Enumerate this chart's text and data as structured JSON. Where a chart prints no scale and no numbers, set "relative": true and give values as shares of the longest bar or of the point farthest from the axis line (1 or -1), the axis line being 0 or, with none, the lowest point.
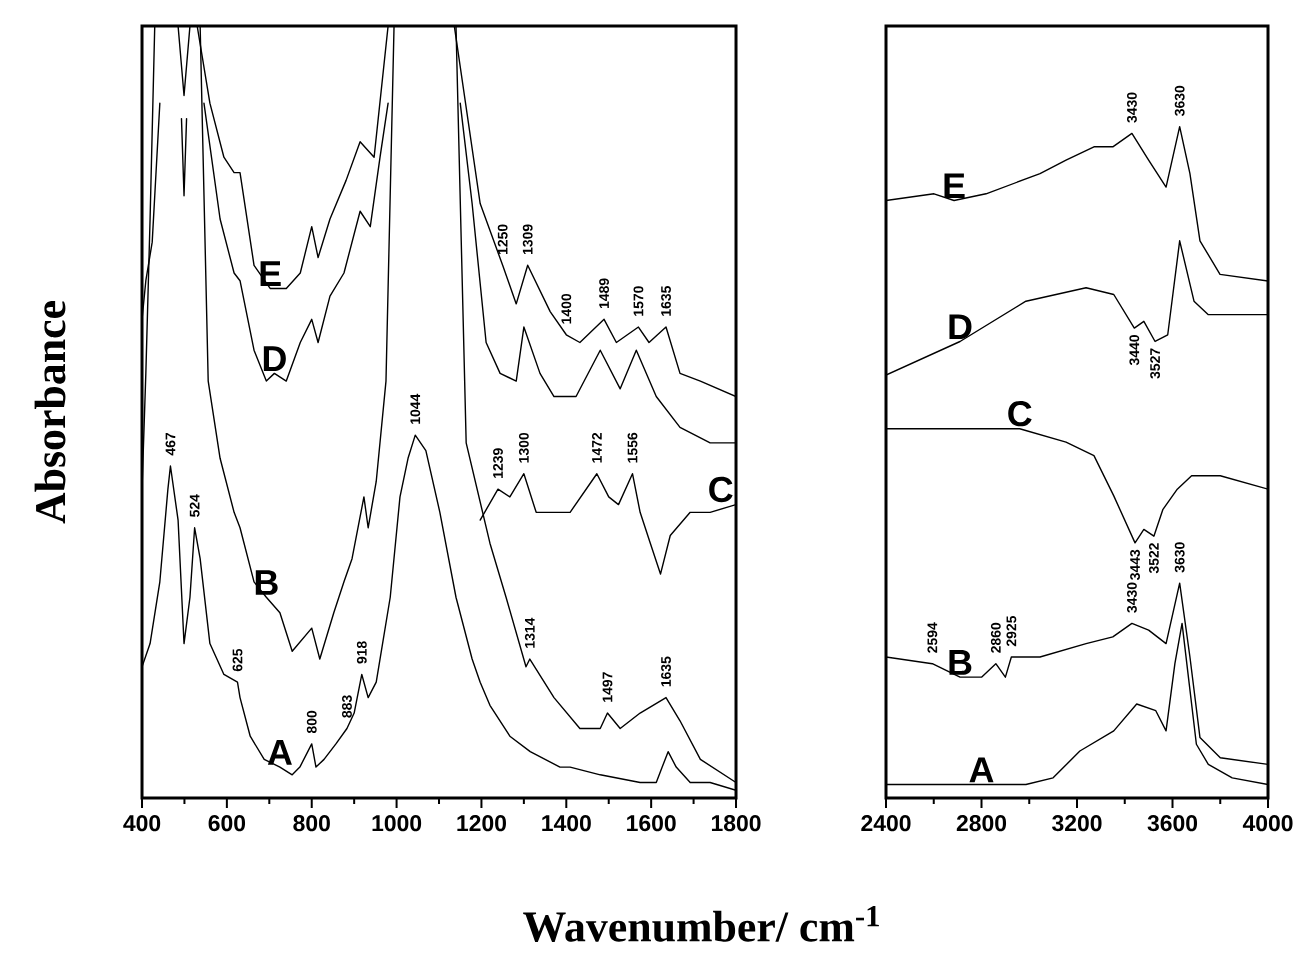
{
  "chart_data": [
    {
      "type": "line",
      "relative": true,
      "xlabel": "Wavenumber/ cm$^{-1}$",
      "ylabel": "Absorbance",
      "xlim": [
        400,
        1800
      ],
      "xticks": [
        400,
        600,
        800,
        1000,
        1200,
        1400,
        1600,
        1800
      ],
      "series": [
        {
          "name": "A",
          "color": "#000000",
          "x": [
            400,
            419,
            442,
            461,
            467,
            485,
            499,
            513,
            524,
            537,
            560,
            593,
            625,
            631,
            655,
            688,
            725,
            754,
            772,
            800,
            810,
            829,
            857,
            883,
            900,
            918,
            933,
            952,
            985,
            1008,
            1027,
            1044,
            1069,
            1102,
            1140,
            1178,
            1197,
            1220,
            1267,
            1315,
            1385,
            1409,
            1480,
            1574,
            1612,
            1626,
            1640,
            1659,
            1692,
            1739,
            1800
          ],
          "values": [
            0.17,
            0.2,
            0.28,
            0.4,
            0.43,
            0.36,
            0.2,
            0.26,
            0.35,
            0.31,
            0.2,
            0.16,
            0.15,
            0.13,
            0.08,
            0.05,
            0.04,
            0.03,
            0.04,
            0.07,
            0.04,
            0.05,
            0.07,
            0.09,
            0.11,
            0.16,
            0.13,
            0.15,
            0.26,
            0.39,
            0.44,
            0.47,
            0.45,
            0.37,
            0.26,
            0.18,
            0.15,
            0.12,
            0.08,
            0.06,
            0.04,
            0.04,
            0.03,
            0.02,
            0.02,
            0.04,
            0.06,
            0.04,
            0.02,
            0.02,
            0.01
          ]
        },
        {
          "name": "B",
          "color": "#000000",
          "x": [
            400,
            409,
            419,
            430,
            460,
            490,
            499,
            508,
            530,
            537,
            556,
            584,
            617,
            631,
            664,
            693,
            725,
            754,
            800,
            819,
            852,
            876,
            895,
            923,
            933,
            952,
            975,
            994,
            1060,
            1140,
            1164,
            1220,
            1258,
            1305,
            1314,
            1371,
            1432,
            1480,
            1497,
            1527,
            1574,
            1635,
            1668,
            1716,
            1800
          ],
          "values": [
            0.4,
            0.55,
            0.75,
            1.0,
            null,
            null,
            null,
            null,
            null,
            1.0,
            0.54,
            0.44,
            0.37,
            0.35,
            0.28,
            0.26,
            0.24,
            0.19,
            0.22,
            0.18,
            0.24,
            0.28,
            0.31,
            0.39,
            0.35,
            0.41,
            0.54,
            1.0,
            null,
            1.0,
            0.46,
            0.33,
            0.26,
            0.17,
            0.18,
            0.13,
            0.09,
            0.09,
            0.11,
            0.09,
            0.11,
            0.13,
            0.1,
            0.05,
            0.02
          ]
        },
        {
          "name": "C",
          "color": "#000000",
          "x": [
            1197,
            1239,
            1267,
            1300,
            1329,
            1352,
            1409,
            1472,
            1500,
            1523,
            1556,
            1574,
            1598,
            1622,
            1645,
            1692,
            1739,
            1800
          ],
          "values": [
            0.36,
            0.4,
            0.39,
            0.42,
            0.37,
            0.37,
            0.37,
            0.42,
            0.39,
            0.38,
            0.42,
            0.37,
            0.33,
            0.29,
            0.34,
            0.37,
            0.37,
            0.38
          ]
        },
        {
          "name": "D",
          "color": "#000000",
          "x": [
            400,
            409,
            424,
            442,
            450,
            493,
            499,
            505,
            530,
            546,
            584,
            617,
            631,
            664,
            693,
            712,
            740,
            773,
            800,
            815,
            843,
            876,
            914,
            938,
            961,
            980,
            1060,
            1150,
            1178,
            1211,
            1244,
            1282,
            1300,
            1338,
            1371,
            1423,
            1480,
            1527,
            1565,
            1612,
            1668,
            1739,
            1800
          ],
          "values": [
            0.62,
            0.67,
            0.72,
            0.9,
            null,
            0.88,
            0.78,
            0.88,
            null,
            0.9,
            0.75,
            0.68,
            0.67,
            0.58,
            0.54,
            0.55,
            0.54,
            0.59,
            0.62,
            0.59,
            0.65,
            0.68,
            0.76,
            0.74,
            0.83,
            0.9,
            null,
            0.9,
            0.77,
            0.59,
            0.55,
            0.54,
            0.61,
            0.55,
            0.52,
            0.52,
            0.58,
            0.53,
            0.58,
            0.52,
            0.48,
            0.46,
            0.46
          ]
        },
        {
          "name": "E",
          "color": "#000000",
          "x": [
            485,
            499,
            513,
            530,
            560,
            593,
            617,
            631,
            664,
            702,
            740,
            773,
            800,
            815,
            843,
            881,
            914,
            947,
            980,
            1060,
            1136,
            1197,
            1250,
            1282,
            1309,
            1362,
            1400,
            1432,
            1489,
            1518,
            1570,
            1595,
            1635,
            1668,
            1716,
            1800
          ],
          "values": [
            1.0,
            0.91,
            1.0,
            1.0,
            0.9,
            0.83,
            0.81,
            0.81,
            0.69,
            0.66,
            0.66,
            0.68,
            0.74,
            0.7,
            0.75,
            0.8,
            0.85,
            0.83,
            1.0,
            null,
            1.0,
            0.77,
            0.69,
            0.64,
            0.69,
            0.63,
            0.6,
            0.59,
            0.62,
            0.59,
            0.61,
            0.59,
            0.61,
            0.55,
            0.54,
            0.52
          ]
        }
      ],
      "annotations": [
        {
          "text": "467",
          "x": 467,
          "y": 0.43
        },
        {
          "text": "524",
          "x": 524,
          "y": 0.35
        },
        {
          "text": "625",
          "x": 625,
          "y": 0.15
        },
        {
          "text": "800",
          "x": 800,
          "y": 0.07
        },
        {
          "text": "883",
          "x": 883,
          "y": 0.09
        },
        {
          "text": "918",
          "x": 918,
          "y": 0.16
        },
        {
          "text": "1044",
          "x": 1044,
          "y": 0.47
        },
        {
          "text": "1314",
          "x": 1314,
          "y": 0.18
        },
        {
          "text": "1497",
          "x": 1497,
          "y": 0.11
        },
        {
          "text": "1635",
          "x": 1635,
          "y": 0.13
        },
        {
          "text": "1239",
          "x": 1239,
          "y": 0.4
        },
        {
          "text": "1300",
          "x": 1300,
          "y": 0.42
        },
        {
          "text": "1472",
          "x": 1472,
          "y": 0.42
        },
        {
          "text": "1556",
          "x": 1556,
          "y": 0.42
        },
        {
          "text": "1250",
          "x": 1250,
          "y": 0.69
        },
        {
          "text": "1309",
          "x": 1309,
          "y": 0.69
        },
        {
          "text": "1400",
          "x": 1400,
          "y": 0.6
        },
        {
          "text": "1489",
          "x": 1489,
          "y": 0.62
        },
        {
          "text": "1570",
          "x": 1570,
          "y": 0.61
        },
        {
          "text": "1635",
          "x": 1635,
          "y": 0.61
        }
      ]
    },
    {
      "type": "line",
      "relative": true,
      "xlim": [
        2400,
        4000
      ],
      "xticks": [
        2400,
        2800,
        3200,
        3600,
        4000
      ],
      "series": [
        {
          "name": "A",
          "color": "#000000",
          "x": [
            2400,
            2800,
            2986,
            3100,
            3212,
            3354,
            3450,
            3530,
            3573,
            3610,
            3640,
            3670,
            3700,
            3750,
            3850,
            4000
          ],
          "values": [
            0.02,
            0.02,
            0.02,
            0.03,
            0.07,
            0.1,
            0.14,
            0.13,
            0.1,
            0.2,
            0.26,
            0.17,
            0.08,
            0.05,
            0.03,
            0.02
          ]
        },
        {
          "name": "B",
          "color": "#000000",
          "x": [
            2400,
            2594,
            2710,
            2800,
            2860,
            2900,
            2925,
            3045,
            3238,
            3350,
            3430,
            3500,
            3573,
            3630,
            3673,
            3715,
            3800,
            4000
          ],
          "values": [
            0.21,
            0.2,
            0.18,
            0.18,
            0.2,
            0.18,
            0.21,
            0.21,
            0.23,
            0.24,
            0.26,
            0.25,
            0.23,
            0.32,
            0.21,
            0.09,
            0.06,
            0.05
          ]
        },
        {
          "name": "C",
          "color": "#000000",
          "x": [
            2400,
            2960,
            3154,
            3271,
            3354,
            3443,
            3480,
            3522,
            3560,
            3620,
            3680,
            3800,
            4000
          ],
          "values": [
            0.55,
            0.55,
            0.53,
            0.51,
            0.45,
            0.38,
            0.4,
            0.39,
            0.43,
            0.46,
            0.48,
            0.48,
            0.46
          ]
        },
        {
          "name": "D",
          "color": "#000000",
          "x": [
            2400,
            2710,
            2986,
            3238,
            3354,
            3440,
            3480,
            3527,
            3580,
            3630,
            3690,
            3750,
            4000
          ],
          "values": [
            0.63,
            0.68,
            0.74,
            0.76,
            0.75,
            0.7,
            0.71,
            0.68,
            0.69,
            0.83,
            0.74,
            0.72,
            0.72
          ]
        },
        {
          "name": "E",
          "color": "#000000",
          "x": [
            2400,
            2601,
            2685,
            2819,
            3045,
            3154,
            3271,
            3350,
            3430,
            3500,
            3573,
            3630,
            3673,
            3715,
            3799,
            4000
          ],
          "values": [
            0.89,
            0.9,
            0.89,
            0.9,
            0.93,
            0.95,
            0.97,
            0.97,
            0.99,
            0.95,
            0.91,
            1.0,
            0.93,
            0.83,
            0.78,
            0.77
          ]
        }
      ],
      "annotations": [
        {
          "text": "2594",
          "x": 2594,
          "y": 0.2
        },
        {
          "text": "2860",
          "x": 2860,
          "y": 0.2
        },
        {
          "text": "2925",
          "x": 2925,
          "y": 0.21
        },
        {
          "text": "3430",
          "x": 3430,
          "y": 0.26
        },
        {
          "text": "3630",
          "x": 3630,
          "y": 0.32
        },
        {
          "text": "3443",
          "x": 3443,
          "y": 0.38
        },
        {
          "text": "3522",
          "x": 3522,
          "y": 0.39
        },
        {
          "text": "3440",
          "x": 3440,
          "y": 0.7
        },
        {
          "text": "3527",
          "x": 3527,
          "y": 0.68
        },
        {
          "text": "3430",
          "x": 3430,
          "y": 0.99
        },
        {
          "text": "3630",
          "x": 3630,
          "y": 1.0
        }
      ]
    }
  ]
}
